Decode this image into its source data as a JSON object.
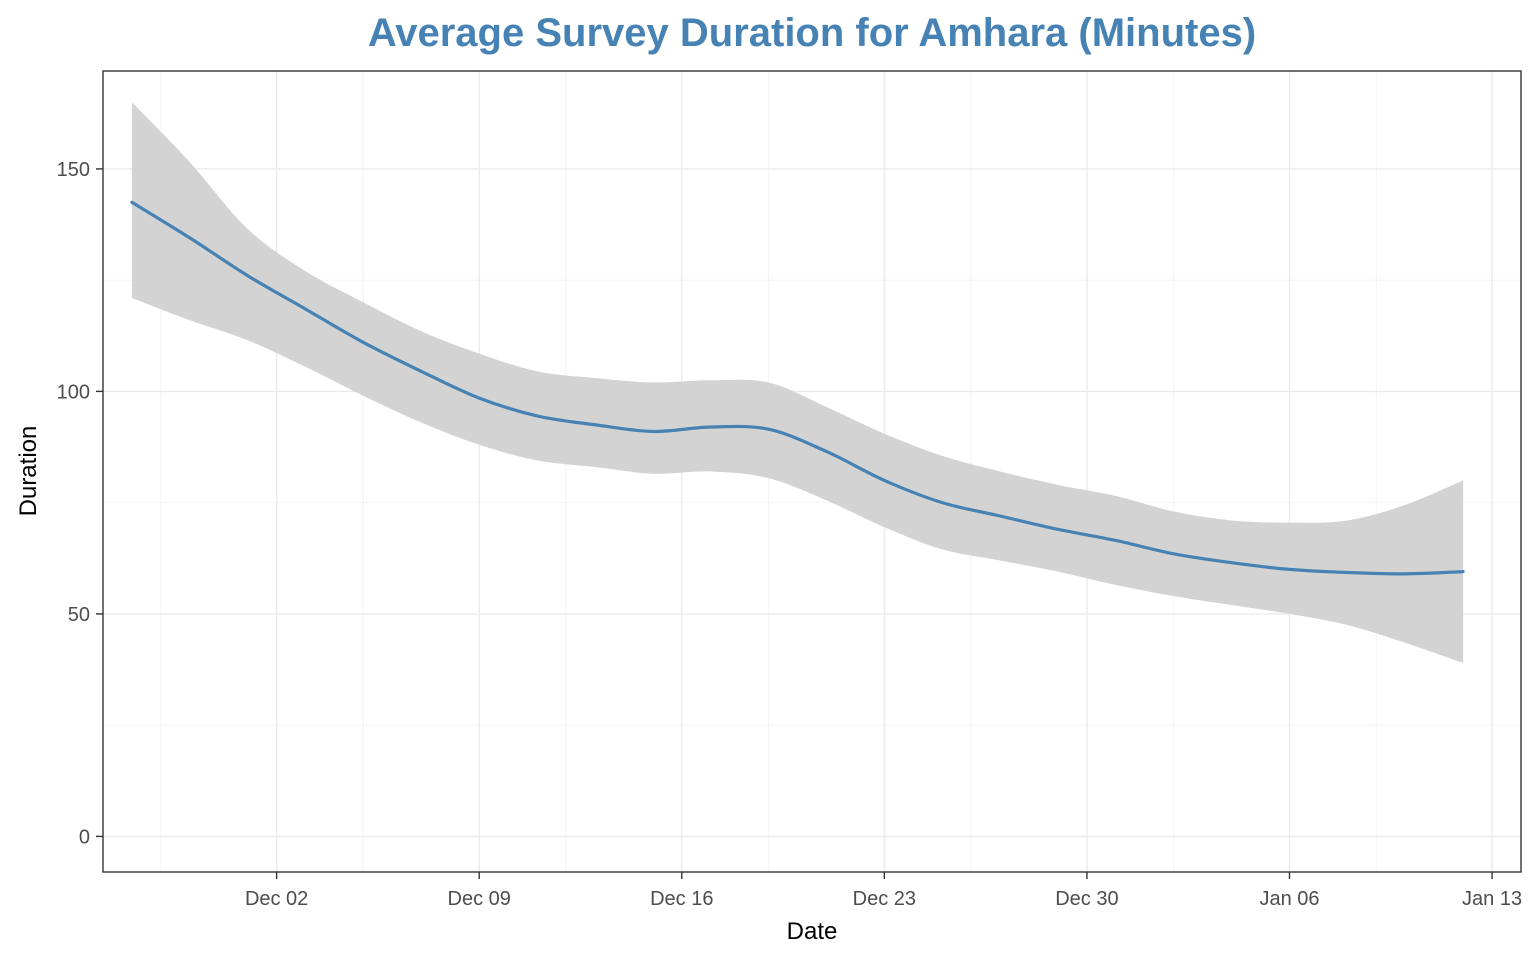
{
  "chart_data": {
    "type": "line",
    "title": "Average Survey Duration for Amhara (Minutes)",
    "xlabel": "Date",
    "ylabel": "Duration",
    "x_type": "date",
    "xlim": [
      "2024-11-26",
      "2025-01-14"
    ],
    "ylim": [
      -8,
      172
    ],
    "x_ticks": [
      {
        "date": "2024-12-02",
        "label": "Dec 02"
      },
      {
        "date": "2024-12-09",
        "label": "Dec 09"
      },
      {
        "date": "2024-12-16",
        "label": "Dec 16"
      },
      {
        "date": "2024-12-23",
        "label": "Dec 23"
      },
      {
        "date": "2024-12-30",
        "label": "Dec 30"
      },
      {
        "date": "2025-01-06",
        "label": "Jan 06"
      },
      {
        "date": "2025-01-13",
        "label": "Jan 13"
      }
    ],
    "x_minor_ticks": [
      "2024-11-28",
      "2024-12-05",
      "2024-12-12",
      "2024-12-19",
      "2024-12-26",
      "2025-01-02",
      "2025-01-09"
    ],
    "y_ticks": [
      0,
      50,
      100,
      150
    ],
    "y_minor_ticks": [
      25,
      75,
      125
    ],
    "grid": true,
    "legend": "none",
    "colors": {
      "line": "#4682B4",
      "band": "#d3d3d3",
      "title": "#4682B4"
    },
    "series": [
      {
        "x": [
          "2024-11-27",
          "2024-11-29",
          "2024-12-01",
          "2024-12-03",
          "2024-12-05",
          "2024-12-07",
          "2024-12-09",
          "2024-12-11",
          "2024-12-13",
          "2024-12-15",
          "2024-12-17",
          "2024-12-19",
          "2024-12-21",
          "2024-12-23",
          "2024-12-25",
          "2024-12-27",
          "2024-12-29",
          "2024-12-31",
          "2025-01-02",
          "2025-01-04",
          "2025-01-06",
          "2025-01-08",
          "2025-01-10",
          "2025-01-12"
        ],
        "values": [
          142.5,
          134.5,
          126,
          118.5,
          111,
          104.5,
          98.5,
          94.5,
          92.5,
          91,
          92,
          91.5,
          86.5,
          80,
          75,
          72,
          69,
          66.5,
          63.5,
          61.5,
          60,
          59.3,
          59,
          59.5
        ],
        "lower": [
          121,
          116,
          111.5,
          105.5,
          99,
          93,
          88,
          84.5,
          83,
          81.5,
          82,
          80.5,
          75.5,
          69.5,
          64.5,
          62,
          59.5,
          56.5,
          54,
          52,
          50,
          47.5,
          43.5,
          39
        ],
        "upper": [
          165,
          151.5,
          136.5,
          127,
          120,
          113.5,
          108.5,
          104.5,
          103,
          102,
          102.5,
          102,
          96.5,
          90.5,
          85.5,
          82,
          79,
          76.5,
          73,
          71,
          70.5,
          71,
          74.5,
          80
        ]
      }
    ]
  }
}
